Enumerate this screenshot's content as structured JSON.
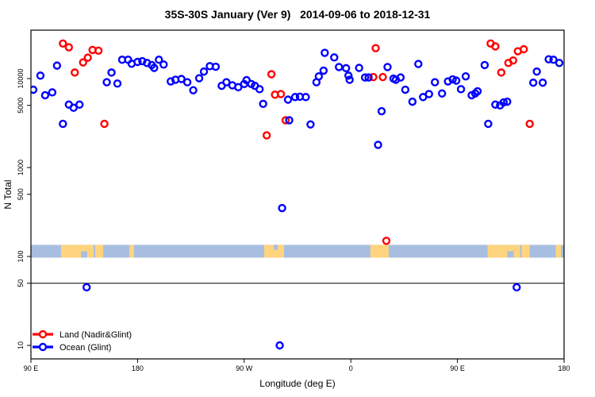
{
  "chart_data": {
    "type": "scatter",
    "title": "35S-30S January (Ver 9)   2014-09-06 to 2018-12-31",
    "xlabel": "Longitude (deg E)",
    "ylabel": "N Total",
    "y_scale": "log10",
    "x_axis": {
      "lon_start": 90,
      "lon_end": 540,
      "ticks": [
        {
          "lon": 90,
          "label": "90 E"
        },
        {
          "lon": 180,
          "label": "180"
        },
        {
          "lon": 270,
          "label": "90 W"
        },
        {
          "lon": 360,
          "label": "0"
        },
        {
          "lon": 450,
          "label": "90 E"
        },
        {
          "lon": 540,
          "label": "180"
        }
      ]
    },
    "y_axis": {
      "ticks": [
        {
          "value": 10,
          "label": "10"
        },
        {
          "value": 50,
          "label": "50"
        },
        {
          "value": 100,
          "label": "100"
        },
        {
          "value": 500,
          "label": "500"
        },
        {
          "value": 1000,
          "label": "1000"
        },
        {
          "value": 5000,
          "label": "5000"
        },
        {
          "value": 10000,
          "label": "10000"
        }
      ]
    },
    "reference_line_value": 50,
    "grid": "off",
    "legend_position": "bottom-left-inside",
    "legend": [
      {
        "label": "Land (Nadir&Glint)",
        "color": "#ff0000"
      },
      {
        "label": "Ocean (Glint)",
        "color": "#0000ff"
      }
    ],
    "coastline_band": {
      "value_high": 135,
      "value_low": 97,
      "ocean_color": "#a8bee0",
      "land_color": "#ffd47e",
      "land_segments_full": [
        [
          115.4,
          132.2
        ],
        [
          137.5,
          142.9
        ],
        [
          144.2,
          151.0
        ],
        [
          173.0,
          177.0
        ],
        [
          286.9,
          303.6
        ],
        [
          376.5,
          392.0
        ],
        [
          475.4,
          492.2
        ],
        [
          497.5,
          502.9
        ],
        [
          504.2,
          511.0
        ],
        [
          533.0,
          537.5
        ]
      ],
      "land_segments_top_half": [
        [
          132.2,
          137.5
        ],
        [
          492.2,
          497.5
        ]
      ],
      "ocean_notches_top": [
        [
          294.9,
          298.3
        ]
      ]
    },
    "series": [
      {
        "name": "Land (Nadir&Glint)",
        "color": "#ff0000",
        "points": [
          [
            117,
            24800
          ],
          [
            122,
            22500
          ],
          [
            127,
            11700
          ],
          [
            134,
            15200
          ],
          [
            138,
            17200
          ],
          [
            142,
            21000
          ],
          [
            147,
            20600
          ],
          [
            152,
            3100
          ],
          [
            289,
            2300
          ],
          [
            293,
            11200
          ],
          [
            296,
            6600
          ],
          [
            301,
            6700
          ],
          [
            305,
            3400
          ],
          [
            381,
            22000
          ],
          [
            379,
            10400
          ],
          [
            387,
            10400
          ],
          [
            390,
            150
          ],
          [
            478,
            24800
          ],
          [
            482,
            23000
          ],
          [
            487,
            11700
          ],
          [
            493,
            15000
          ],
          [
            497,
            16000
          ],
          [
            501,
            20300
          ],
          [
            506,
            21400
          ],
          [
            511,
            3100
          ]
        ]
      },
      {
        "name": "Ocean (Glint)",
        "color": "#0000ff",
        "points": [
          [
            92,
            7500
          ],
          [
            98,
            10800
          ],
          [
            102,
            6500
          ],
          [
            108,
            7000
          ],
          [
            112,
            14000
          ],
          [
            117,
            3100
          ],
          [
            122,
            5100
          ],
          [
            126,
            4700
          ],
          [
            131,
            5100
          ],
          [
            154,
            9100
          ],
          [
            158,
            11700
          ],
          [
            163,
            8800
          ],
          [
            167,
            16300
          ],
          [
            172,
            16300
          ],
          [
            175,
            14700
          ],
          [
            180,
            15400
          ],
          [
            184,
            15700
          ],
          [
            188,
            15000
          ],
          [
            192,
            14200
          ],
          [
            194,
            13200
          ],
          [
            198,
            16300
          ],
          [
            202,
            14400
          ],
          [
            208,
            9300
          ],
          [
            212,
            9700
          ],
          [
            217,
            9900
          ],
          [
            222,
            9100
          ],
          [
            227,
            7400
          ],
          [
            232,
            10100
          ],
          [
            236,
            12000
          ],
          [
            241,
            13800
          ],
          [
            246,
            13600
          ],
          [
            251,
            8300
          ],
          [
            255,
            9100
          ],
          [
            260,
            8400
          ],
          [
            265,
            8000
          ],
          [
            270,
            8700
          ],
          [
            272,
            9600
          ],
          [
            276,
            8700
          ],
          [
            279,
            8300
          ],
          [
            283,
            7600
          ],
          [
            286,
            5200
          ],
          [
            307,
            5800
          ],
          [
            313,
            6200
          ],
          [
            317,
            6250
          ],
          [
            322,
            6200
          ],
          [
            308,
            3400
          ],
          [
            326,
            3050
          ],
          [
            338,
            19500
          ],
          [
            346,
            17300
          ],
          [
            337,
            12300
          ],
          [
            333,
            10600
          ],
          [
            331,
            9100
          ],
          [
            350,
            13500
          ],
          [
            356,
            13100
          ],
          [
            358,
            10800
          ],
          [
            359,
            9700
          ],
          [
            367,
            13200
          ],
          [
            372,
            10300
          ],
          [
            375,
            10300
          ],
          [
            391,
            13500
          ],
          [
            396,
            10000
          ],
          [
            398,
            9700
          ],
          [
            402,
            10300
          ],
          [
            417,
            14600
          ],
          [
            406,
            7500
          ],
          [
            412,
            5500
          ],
          [
            421,
            6200
          ],
          [
            426,
            6700
          ],
          [
            386,
            4300
          ],
          [
            383,
            1800
          ],
          [
            431,
            9100
          ],
          [
            437,
            6800
          ],
          [
            442,
            9300
          ],
          [
            446,
            9800
          ],
          [
            449,
            9500
          ],
          [
            453,
            7600
          ],
          [
            457,
            10600
          ],
          [
            462,
            6500
          ],
          [
            465,
            6800
          ],
          [
            467,
            7200
          ],
          [
            473,
            14200
          ],
          [
            476,
            3100
          ],
          [
            482,
            5100
          ],
          [
            486,
            5000
          ],
          [
            489,
            5400
          ],
          [
            492,
            5500
          ],
          [
            514,
            9000
          ],
          [
            517,
            12000
          ],
          [
            522,
            9000
          ],
          [
            527,
            16500
          ],
          [
            531,
            16300
          ],
          [
            536,
            15000
          ],
          [
            302,
            350
          ],
          [
            137,
            45
          ],
          [
            500,
            45
          ],
          [
            300,
            10
          ]
        ]
      }
    ]
  }
}
